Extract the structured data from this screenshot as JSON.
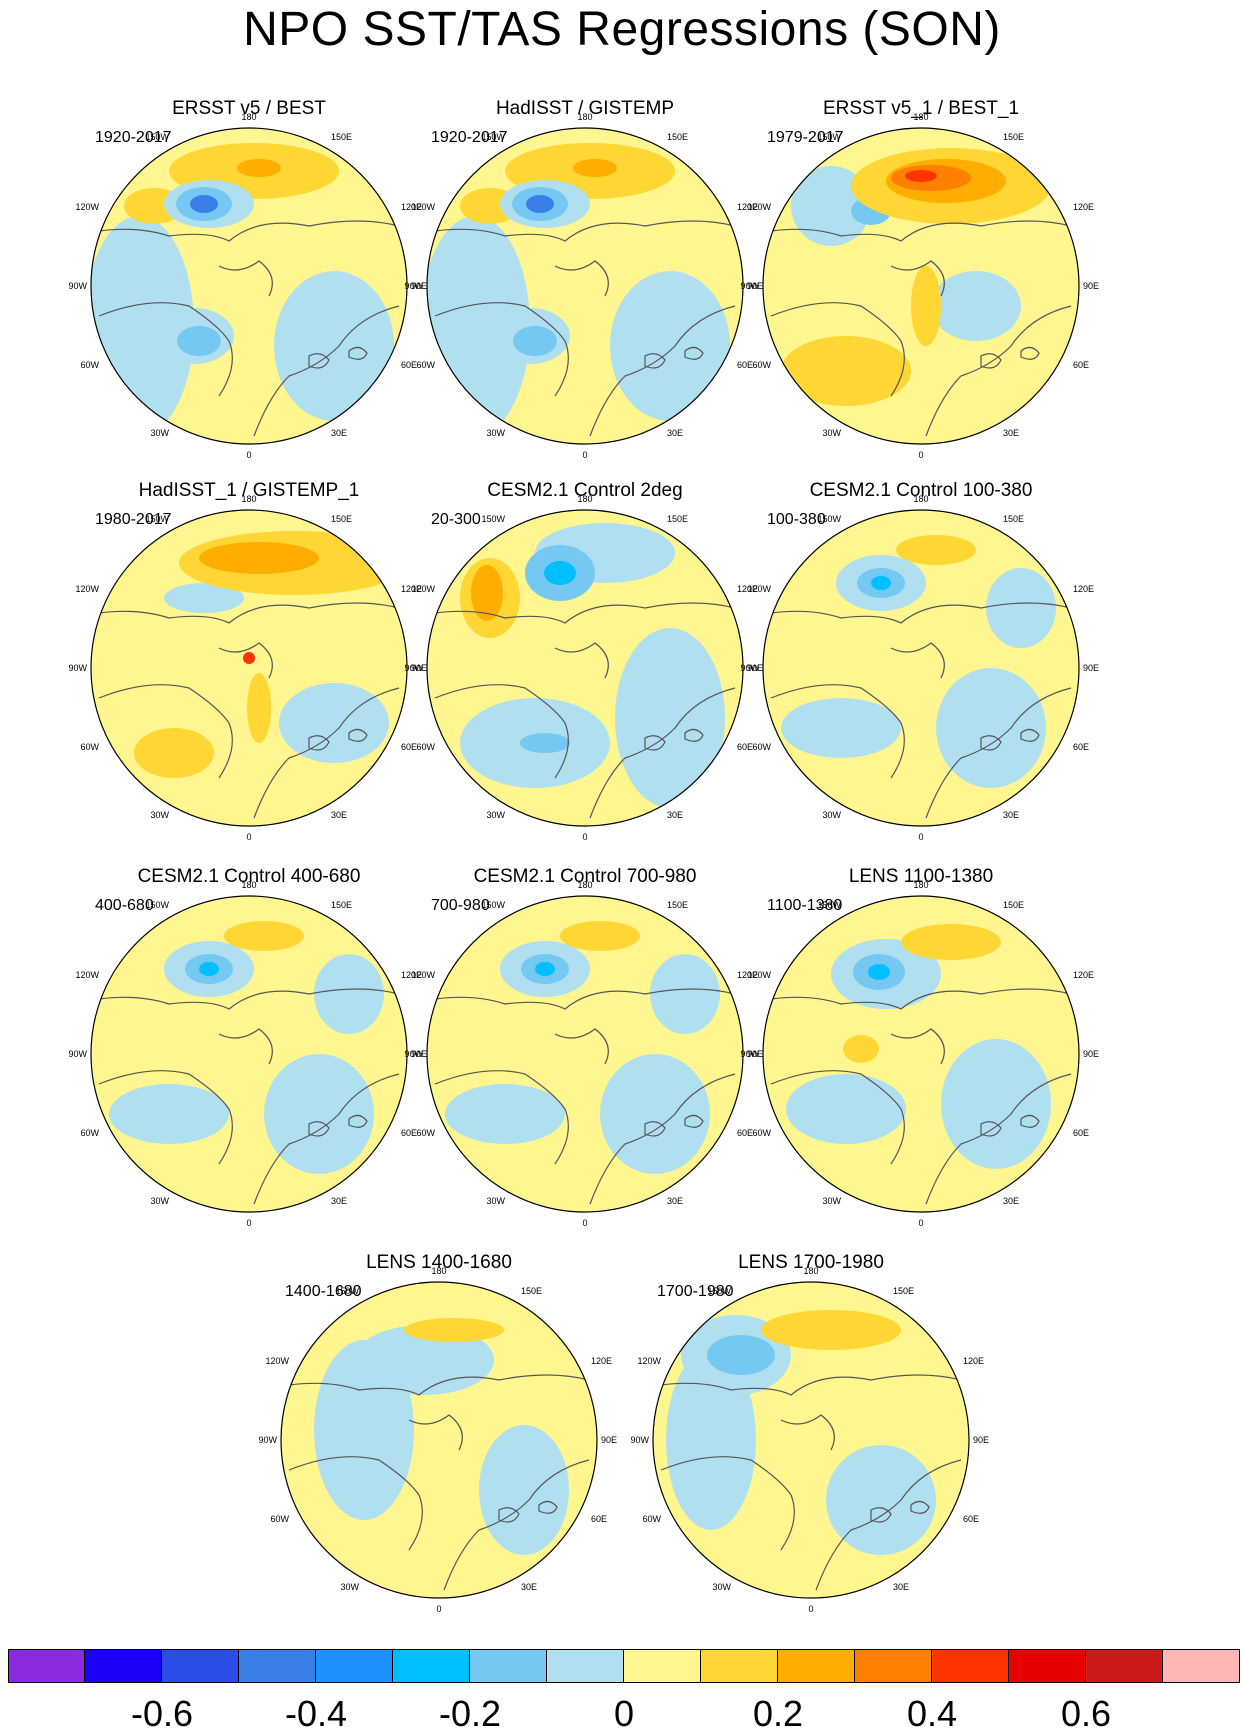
{
  "title": "NPO SST/TAS Regressions (SON)",
  "panels": [
    {
      "title": "ERSST v5 / BEST",
      "period": "1920-2017",
      "pattern": "obs_long"
    },
    {
      "title": "HadISST / GISTEMP",
      "period": "1920-2017",
      "pattern": "obs_long"
    },
    {
      "title": "ERSST v5_1 / BEST_1",
      "period": "1979-2017",
      "pattern": "obs_strong"
    },
    {
      "title": "HadISST_1 / GISTEMP_1",
      "period": "1980-2017",
      "pattern": "obs_recent"
    },
    {
      "title": "CESM2.1 Control 2deg",
      "period": "20-300",
      "pattern": "model_2deg"
    },
    {
      "title": "CESM2.1 Control 100-380",
      "period": "100-380",
      "pattern": "model"
    },
    {
      "title": "CESM2.1 Control 400-680",
      "period": "400-680",
      "pattern": "model"
    },
    {
      "title": "CESM2.1 Control 700-980",
      "period": "700-980",
      "pattern": "model"
    },
    {
      "title": "LENS 1100-1380",
      "period": "1100-1380",
      "pattern": "lens"
    },
    {
      "title": "LENS 1400-1680",
      "period": "1400-1680",
      "pattern": "lens_weak"
    },
    {
      "title": "LENS 1700-1980",
      "period": "1700-1980",
      "pattern": "lens_1700"
    }
  ],
  "map_labels": {
    "top": "180",
    "bottom": "0",
    "upper_left": "150W",
    "upper_right": "150E",
    "mid_upper_left": "120W",
    "mid_upper_right": "120E",
    "left": "90W",
    "right": "90E",
    "mid_lower_left": "60W",
    "mid_lower_right": "60E",
    "lower_left": "30W",
    "lower_right": "30E"
  },
  "colorbar": {
    "colors": [
      "#8a2be2",
      "#1c00f8",
      "#2b4ce6",
      "#3a7fe8",
      "#1e90ff",
      "#00bfff",
      "#75c8f2",
      "#b0dff0",
      "#fff68f",
      "#ffd633",
      "#ffad00",
      "#ff7f00",
      "#ff3300",
      "#e60000",
      "#cc1a1a",
      "#ffb6b6"
    ],
    "tick_labels": [
      "-0.6",
      "-0.4",
      "-0.2",
      "0",
      "0.2",
      "0.4",
      "0.6"
    ],
    "tick_positions": [
      2,
      4,
      6,
      8,
      10,
      12,
      14
    ],
    "levels": [
      -0.7,
      -0.6,
      -0.5,
      -0.4,
      -0.3,
      -0.2,
      -0.1,
      0,
      0.1,
      0.2,
      0.3,
      0.4,
      0.5,
      0.6,
      0.7
    ]
  },
  "palette": {
    "neg_light": "#b0dff0",
    "neg_mid": "#75c8f2",
    "neg_strong": "#00bfff",
    "neg_deep": "#3a7fe8",
    "pos_light": "#fff68f",
    "pos_mid": "#ffd633",
    "pos_strong": "#ffad00",
    "pos_deep": "#ff7f00",
    "pos_max": "#ff3300"
  }
}
